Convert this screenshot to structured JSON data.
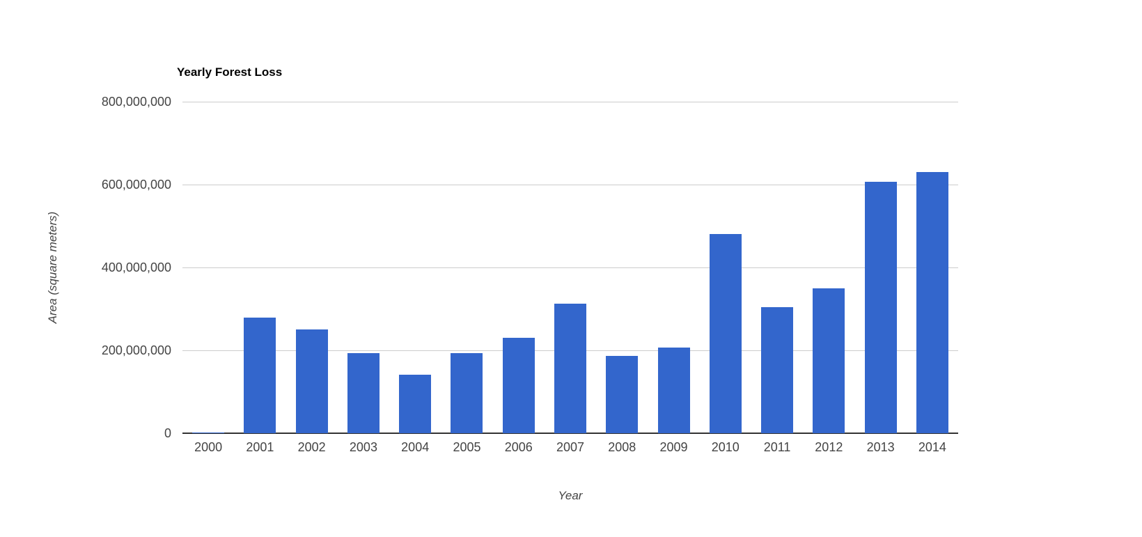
{
  "chart_data": {
    "type": "bar",
    "title": "Yearly Forest Loss",
    "xlabel": "Year",
    "ylabel": "Area (square meters)",
    "categories": [
      "2000",
      "2001",
      "2002",
      "2003",
      "2004",
      "2005",
      "2006",
      "2007",
      "2008",
      "2009",
      "2010",
      "2011",
      "2012",
      "2013",
      "2014"
    ],
    "values": [
      2000000,
      279000000,
      250000000,
      194000000,
      142000000,
      194000000,
      231000000,
      313000000,
      187000000,
      206000000,
      481000000,
      304000000,
      350000000,
      606000000,
      630000000
    ],
    "ylim": [
      0,
      800000000
    ],
    "ytick_values": [
      0,
      200000000,
      400000000,
      600000000,
      800000000
    ],
    "ytick_labels": [
      "0",
      "200,000,000",
      "400,000,000",
      "600,000,000",
      "800,000,000"
    ],
    "grid": true,
    "legend": "none"
  },
  "colors": {
    "bar": "#3366cc",
    "gridline": "#cccccc",
    "axis_line": "#333333",
    "tick_text": "#444444",
    "title_text": "#000000",
    "axis_title_text": "#444444",
    "background": "#ffffff"
  }
}
